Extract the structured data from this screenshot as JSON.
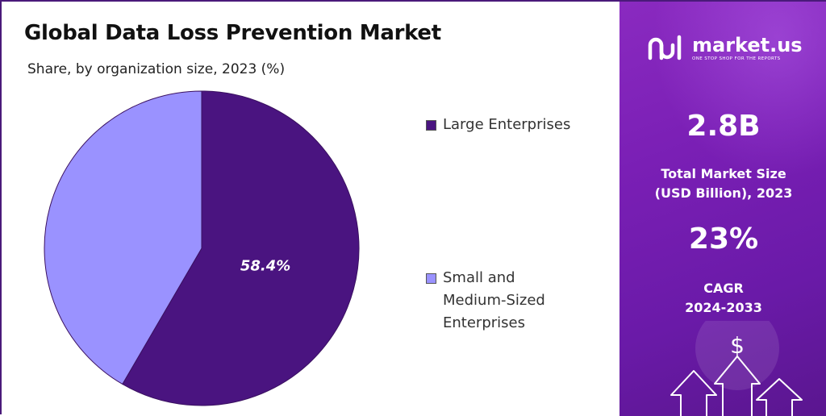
{
  "chart_data": {
    "type": "pie",
    "title": "Global Data Loss Prevention Market",
    "subtitle": "Share, by organization size, 2023 (%)",
    "categories": [
      "Large Enterprises",
      "Small and Medium-Sized Enterprises"
    ],
    "values": [
      58.4,
      41.6
    ],
    "data_labels": [
      "58.4%",
      ""
    ],
    "colors": [
      "#4a1480",
      "#9a92ff"
    ],
    "legend_position": "right"
  },
  "legend": {
    "items": [
      {
        "label": "Large Enterprises",
        "color": "#4a1480"
      },
      {
        "label": "Small and\nMedium-Sized\nEnterprises",
        "color": "#9a92ff"
      }
    ]
  },
  "sidebar": {
    "brand_name": "market.us",
    "brand_tagline": "ONE STOP SHOP FOR THE REPORTS",
    "market_size_value": "2.8B",
    "market_size_label_line1": "Total Market Size",
    "market_size_label_line2": "(USD Billion), 2023",
    "cagr_value": "23%",
    "cagr_label_line1": "CAGR",
    "cagr_label_line2": "2024-2033",
    "currency_symbol": "$"
  }
}
